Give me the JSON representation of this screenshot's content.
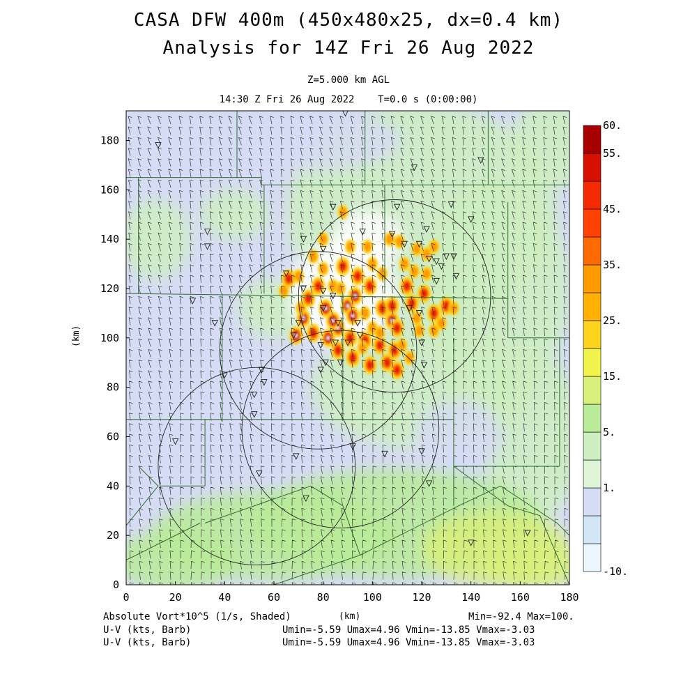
{
  "title_line1": "CASA DFW 400m (450x480x25, dx=0.4 km)",
  "title_line2": "Analysis for 14Z Fri 26 Aug 2022",
  "subtitle_line1": "Z=5.000 km AGL",
  "subtitle_line2": "14:30 Z Fri 26 Aug 2022    T=0.0 s (0:00:00)",
  "footer": {
    "field_label": "Absolute Vort*10^5 (1/s, Shaded)",
    "barb_label_1": "U-V (kts, Barb)",
    "barb_label_2": "U-V (kts, Barb)",
    "minmax": "Min=-92.4 Max=100.",
    "uv_range_1": "Umin=-5.59 Umax=4.96 Vmin=-13.85 Vmax=-3.03",
    "uv_range_2": "Umin=-5.59 Umax=4.96 Vmin=-13.85 Vmax=-3.03"
  },
  "colors": {
    "white": "#ffffff",
    "lavender": "#d6dcf5",
    "light_green": "#cdeec0",
    "green": "#b9eb98",
    "yellow_green": "#d8f07a",
    "yellow": "#f1f34a",
    "gold": "#ffd21e",
    "orange": "#ff9a00",
    "dark_orange": "#ff6a00",
    "red_orange": "#ff4000",
    "red": "#e61a00",
    "dark_red": "#a80000",
    "line": "#2f6b2f"
  },
  "chart_data": {
    "type": "heatmap",
    "xlabel": "(km)",
    "ylabel": "(km)",
    "xlim": [
      0,
      180
    ],
    "ylim": [
      0,
      192
    ],
    "x_ticks": [
      0,
      20,
      40,
      60,
      80,
      100,
      120,
      140,
      160,
      180
    ],
    "y_ticks": [
      0,
      20,
      40,
      60,
      80,
      100,
      120,
      140,
      160,
      180
    ],
    "colorbar": {
      "labels": [
        "60.",
        "55.",
        "45.",
        "35.",
        "25.",
        "15.",
        "5.",
        "1.",
        "-10."
      ],
      "bins": [
        {
          "color": "#eaf6fb"
        },
        {
          "color": "#d2e6f6"
        },
        {
          "color": "#d6dcf5"
        },
        {
          "color": "#dff3d6"
        },
        {
          "color": "#cdeec0"
        },
        {
          "color": "#b9eb98"
        },
        {
          "color": "#d8f07a"
        },
        {
          "color": "#f1f34a"
        },
        {
          "color": "#ffd21e"
        },
        {
          "color": "#ffb000"
        },
        {
          "color": "#ff9a00"
        },
        {
          "color": "#ff6a00"
        },
        {
          "color": "#ff4000"
        },
        {
          "color": "#f52a00"
        },
        {
          "color": "#d81000"
        },
        {
          "color": "#a80000"
        }
      ]
    },
    "radar_circles": [
      {
        "cx": 78,
        "cy": 95,
        "r": 40
      },
      {
        "cx": 109,
        "cy": 117,
        "r": 39
      },
      {
        "cx": 87,
        "cy": 63,
        "r": 40
      },
      {
        "cx": 53,
        "cy": 48,
        "r": 40
      }
    ],
    "stations": [
      [
        13,
        178
      ],
      [
        89,
        191
      ],
      [
        117,
        169
      ],
      [
        144,
        172
      ],
      [
        33,
        143
      ],
      [
        33,
        137
      ],
      [
        27,
        115
      ],
      [
        36,
        106
      ],
      [
        72,
        140
      ],
      [
        80,
        136
      ],
      [
        84,
        153
      ],
      [
        96,
        143
      ],
      [
        110,
        153
      ],
      [
        122,
        144
      ],
      [
        108,
        142
      ],
      [
        132,
        154
      ],
      [
        113,
        138
      ],
      [
        119,
        138
      ],
      [
        123,
        132
      ],
      [
        126,
        131
      ],
      [
        128,
        129
      ],
      [
        130,
        133
      ],
      [
        133,
        133
      ],
      [
        126,
        123
      ],
      [
        65,
        126
      ],
      [
        72,
        120
      ],
      [
        80,
        119
      ],
      [
        84,
        117
      ],
      [
        80,
        112
      ],
      [
        70,
        106
      ],
      [
        68,
        101
      ],
      [
        79,
        97
      ],
      [
        85,
        98
      ],
      [
        90,
        98
      ],
      [
        95,
        101
      ],
      [
        86,
        106
      ],
      [
        94,
        106
      ],
      [
        115,
        112
      ],
      [
        119,
        110
      ],
      [
        120,
        98
      ],
      [
        121,
        89
      ],
      [
        81,
        90
      ],
      [
        87,
        90
      ],
      [
        79,
        87
      ],
      [
        55,
        87
      ],
      [
        56,
        82
      ],
      [
        40,
        85
      ],
      [
        52,
        77
      ],
      [
        52,
        69
      ],
      [
        20,
        58
      ],
      [
        92,
        56
      ],
      [
        105,
        53
      ],
      [
        120,
        54
      ],
      [
        69,
        52
      ],
      [
        54,
        45
      ],
      [
        73,
        35
      ],
      [
        123,
        41
      ],
      [
        140,
        17
      ],
      [
        163,
        21
      ],
      [
        134,
        125
      ],
      [
        140,
        148
      ]
    ],
    "hotspots": [
      {
        "x": 82,
        "y": 100,
        "level": 4
      },
      {
        "x": 86,
        "y": 104,
        "level": 4
      },
      {
        "x": 84,
        "y": 107,
        "level": 4
      },
      {
        "x": 81,
        "y": 112,
        "level": 4
      },
      {
        "x": 90,
        "y": 113,
        "level": 4
      },
      {
        "x": 93,
        "y": 117,
        "level": 4
      },
      {
        "x": 72,
        "y": 108,
        "level": 4
      },
      {
        "x": 69,
        "y": 101,
        "level": 4
      },
      {
        "x": 92,
        "y": 109,
        "level": 4
      },
      {
        "x": 108,
        "y": 107,
        "level": 4
      },
      {
        "x": 66,
        "y": 124,
        "level": 3
      },
      {
        "x": 91,
        "y": 100,
        "level": 3
      },
      {
        "x": 97,
        "y": 99,
        "level": 3
      },
      {
        "x": 103,
        "y": 97,
        "level": 3
      },
      {
        "x": 109,
        "y": 95,
        "level": 3
      },
      {
        "x": 110,
        "y": 104,
        "level": 3
      },
      {
        "x": 104,
        "y": 112,
        "level": 3
      },
      {
        "x": 108,
        "y": 113,
        "level": 3
      },
      {
        "x": 116,
        "y": 114,
        "level": 3
      },
      {
        "x": 125,
        "y": 110,
        "level": 3
      },
      {
        "x": 130,
        "y": 113,
        "level": 3
      },
      {
        "x": 121,
        "y": 118,
        "level": 3
      },
      {
        "x": 114,
        "y": 121,
        "level": 3
      },
      {
        "x": 99,
        "y": 121,
        "level": 3
      },
      {
        "x": 94,
        "y": 125,
        "level": 3
      },
      {
        "x": 88,
        "y": 129,
        "level": 3
      },
      {
        "x": 78,
        "y": 121,
        "level": 3
      },
      {
        "x": 74,
        "y": 116,
        "level": 3
      },
      {
        "x": 76,
        "y": 102,
        "level": 3
      },
      {
        "x": 86,
        "y": 95,
        "level": 3
      },
      {
        "x": 92,
        "y": 92,
        "level": 3
      },
      {
        "x": 99,
        "y": 89,
        "level": 3
      },
      {
        "x": 106,
        "y": 90,
        "level": 3
      },
      {
        "x": 110,
        "y": 87,
        "level": 3
      },
      {
        "x": 80,
        "y": 128,
        "level": 2
      },
      {
        "x": 76,
        "y": 133,
        "level": 2
      },
      {
        "x": 80,
        "y": 140,
        "level": 2
      },
      {
        "x": 64,
        "y": 119,
        "level": 2
      },
      {
        "x": 71,
        "y": 112,
        "level": 2
      },
      {
        "x": 70,
        "y": 125,
        "level": 2
      },
      {
        "x": 84,
        "y": 121,
        "level": 2
      },
      {
        "x": 100,
        "y": 130,
        "level": 2
      },
      {
        "x": 104,
        "y": 126,
        "level": 2
      },
      {
        "x": 113,
        "y": 130,
        "level": 2
      },
      {
        "x": 117,
        "y": 127,
        "level": 2
      },
      {
        "x": 122,
        "y": 126,
        "level": 2
      },
      {
        "x": 118,
        "y": 136,
        "level": 2
      },
      {
        "x": 122,
        "y": 134,
        "level": 2
      },
      {
        "x": 125,
        "y": 137,
        "level": 2
      },
      {
        "x": 119,
        "y": 103,
        "level": 2
      },
      {
        "x": 125,
        "y": 103,
        "level": 2
      },
      {
        "x": 112,
        "y": 97,
        "level": 2
      },
      {
        "x": 115,
        "y": 92,
        "level": 2
      },
      {
        "x": 100,
        "y": 104,
        "level": 2
      },
      {
        "x": 97,
        "y": 110,
        "level": 2
      },
      {
        "x": 87,
        "y": 120,
        "level": 2
      },
      {
        "x": 91,
        "y": 137,
        "level": 2
      },
      {
        "x": 98,
        "y": 137,
        "level": 2
      },
      {
        "x": 88,
        "y": 151,
        "level": 2
      },
      {
        "x": 107,
        "y": 140,
        "level": 2
      },
      {
        "x": 111,
        "y": 139,
        "level": 2
      },
      {
        "x": 128,
        "y": 106,
        "level": 2
      },
      {
        "x": 133,
        "y": 112,
        "level": 2
      },
      {
        "x": 103,
        "y": 102,
        "level": 2
      },
      {
        "x": 96,
        "y": 96,
        "level": 2
      },
      {
        "x": 118,
        "y": 108,
        "level": 2
      }
    ]
  }
}
